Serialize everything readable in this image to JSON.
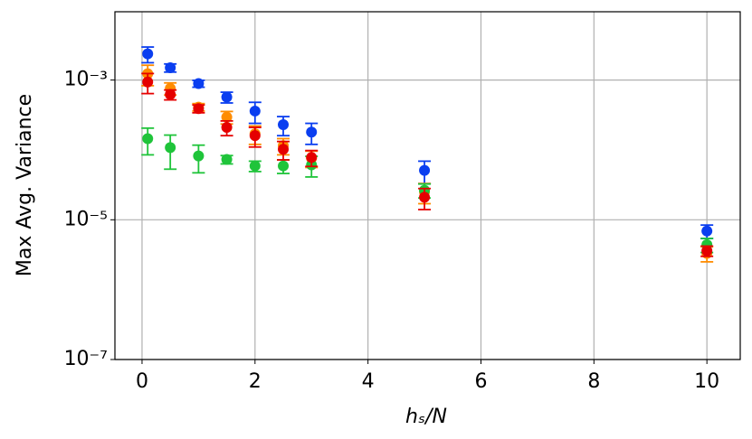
{
  "chart_data": {
    "type": "scatter",
    "xlabel": "hₛ/N",
    "ylabel": "Max Avg. Variance",
    "x": [
      0.1,
      0.5,
      1,
      1.5,
      2,
      2.5,
      3,
      5,
      10
    ],
    "xlim": [
      -0.48,
      10.59
    ],
    "xticks": [
      0,
      2,
      4,
      6,
      8,
      10
    ],
    "ylim": [
      1e-07,
      0.0095
    ],
    "yscale": "log",
    "yticks": [
      {
        "value": 1e-07,
        "label": "10⁻⁷"
      },
      {
        "value": 1e-05,
        "label": "10⁻⁵"
      },
      {
        "value": 0.001,
        "label": "10⁻³"
      }
    ],
    "grid": true,
    "series": [
      {
        "color": "#0a3ef0",
        "values": [
          0.00237,
          0.0015,
          0.00089,
          0.00057,
          0.00036,
          0.00023,
          0.00018,
          5.1e-05,
          6.9e-06
        ],
        "errors": [
          0.0006,
          0.0002,
          0.0001,
          0.0001,
          0.00012,
          7e-05,
          6e-05,
          1.8e-05,
          1.5e-06
        ]
      },
      {
        "color": "#ff8c00",
        "values": [
          0.00123,
          0.00076,
          0.00041,
          0.000295,
          0.00017,
          0.000115,
          7.6e-05,
          2.5e-05,
          3.3e-06
        ],
        "errors": [
          0.0004,
          0.00015,
          5e-05,
          6e-05,
          5e-05,
          3e-05,
          2e-05,
          8e-06,
          8e-07
        ]
      },
      {
        "color": "#1fc43a",
        "values": [
          0.000145,
          0.000108,
          8.2e-05,
          7.3e-05,
          5.9e-05,
          5.9e-05,
          6.1e-05,
          2.65e-05,
          4.4e-06
        ],
        "errors": [
          6e-05,
          5.5e-05,
          3.5e-05,
          1e-05,
          1e-05,
          1.3e-05,
          2e-05,
          6e-06,
          1e-06
        ]
      },
      {
        "color": "#e50000",
        "values": [
          0.00094,
          0.00062,
          0.00039,
          0.00021,
          0.00016,
          0.000102,
          7.8e-05,
          2.1e-05,
          3.6e-06
        ],
        "errors": [
          0.0003,
          0.0001,
          5e-05,
          5e-05,
          5e-05,
          3e-05,
          2e-05,
          7e-06,
          6e-07
        ]
      }
    ]
  }
}
